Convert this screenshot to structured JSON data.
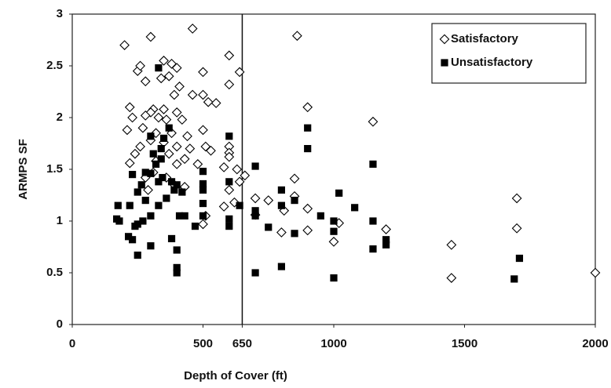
{
  "chart_data": {
    "type": "scatter",
    "xlabel": "Depth of Cover (ft)",
    "ylabel": "ARMPS SF",
    "xlim": [
      0,
      2000
    ],
    "ylim": [
      0,
      3
    ],
    "xticks": [
      0,
      500,
      650,
      1000,
      1500,
      2000
    ],
    "yticks": [
      0,
      0.5,
      1,
      1.5,
      2,
      2.5,
      3
    ],
    "vline": 650,
    "legend": "upper right",
    "series": [
      {
        "name": "Satisfactory",
        "color": "#000000",
        "marker": "diamond",
        "x": [
          200,
          300,
          460,
          860,
          600,
          350,
          380,
          250,
          260,
          400,
          500,
          640,
          280,
          340,
          370,
          410,
          600,
          390,
          460,
          500,
          550,
          520,
          220,
          310,
          350,
          300,
          400,
          900,
          230,
          280,
          330,
          360,
          420,
          500,
          1150,
          210,
          270,
          320,
          380,
          440,
          300,
          350,
          400,
          260,
          450,
          510,
          530,
          600,
          600,
          600,
          240,
          370,
          430,
          320,
          220,
          400,
          480,
          580,
          630,
          310,
          280,
          360,
          660,
          640,
          390,
          430,
          850,
          290,
          600,
          700,
          750,
          620,
          850,
          580,
          900,
          810,
          700,
          510,
          800,
          900,
          1000,
          1020,
          1200,
          1450,
          1450,
          1700,
          1700,
          2000,
          500
        ],
        "values": [
          2.7,
          2.78,
          2.86,
          2.79,
          2.6,
          2.55,
          2.52,
          2.45,
          2.5,
          2.48,
          2.44,
          2.44,
          2.35,
          2.38,
          2.4,
          2.3,
          2.32,
          2.22,
          2.22,
          2.22,
          2.14,
          2.15,
          2.1,
          2.08,
          2.08,
          2.05,
          2.05,
          2.1,
          2.0,
          2.02,
          2.0,
          1.98,
          1.98,
          1.88,
          1.96,
          1.88,
          1.9,
          1.85,
          1.85,
          1.82,
          1.78,
          1.76,
          1.72,
          1.72,
          1.7,
          1.72,
          1.68,
          1.72,
          1.66,
          1.62,
          1.65,
          1.65,
          1.6,
          1.58,
          1.56,
          1.55,
          1.55,
          1.52,
          1.5,
          1.47,
          1.42,
          1.42,
          1.44,
          1.38,
          1.35,
          1.33,
          1.41,
          1.3,
          1.3,
          1.22,
          1.2,
          1.18,
          1.24,
          1.14,
          1.12,
          1.1,
          1.06,
          1.05,
          0.89,
          0.91,
          0.8,
          0.98,
          0.92,
          0.77,
          0.45,
          1.22,
          0.93,
          0.5,
          0.97
        ]
      },
      {
        "name": "Unsatisfactory",
        "color": "#000000",
        "marker": "square",
        "x": [
          175,
          170,
          220,
          215,
          230,
          240,
          250,
          250,
          265,
          280,
          280,
          300,
          300,
          300,
          310,
          320,
          330,
          330,
          340,
          345,
          350,
          330,
          360,
          370,
          380,
          380,
          390,
          400,
          400,
          400,
          400,
          410,
          420,
          430,
          500,
          500,
          500,
          500,
          500,
          470,
          600,
          600,
          600,
          600,
          640,
          700,
          700,
          700,
          700,
          750,
          800,
          800,
          800,
          850,
          850,
          900,
          900,
          950,
          1000,
          1000,
          1000,
          1020,
          1080,
          1150,
          1150,
          1150,
          1200,
          1200,
          1690,
          1710,
          180,
          250,
          270,
          300,
          340,
          230
        ],
        "values": [
          1.15,
          1.02,
          1.15,
          0.85,
          0.82,
          0.95,
          0.67,
          1.28,
          1.35,
          1.2,
          1.47,
          1.46,
          1.82,
          1.05,
          1.65,
          1.55,
          1.38,
          1.15,
          1.6,
          1.42,
          1.8,
          2.48,
          1.22,
          1.9,
          1.38,
          0.83,
          1.3,
          1.35,
          0.72,
          0.55,
          0.5,
          1.05,
          1.28,
          1.05,
          1.48,
          1.36,
          1.3,
          1.17,
          1.05,
          0.95,
          1.82,
          1.38,
          1.02,
          0.95,
          1.15,
          1.53,
          1.1,
          1.05,
          0.5,
          0.94,
          1.3,
          1.15,
          0.56,
          0.88,
          1.2,
          1.9,
          1.7,
          1.05,
          1.0,
          0.9,
          0.45,
          1.27,
          1.13,
          1.55,
          1.0,
          0.73,
          0.82,
          0.77,
          0.44,
          0.64,
          1.0,
          0.97,
          1.0,
          0.76,
          1.7,
          1.45
        ]
      }
    ]
  }
}
